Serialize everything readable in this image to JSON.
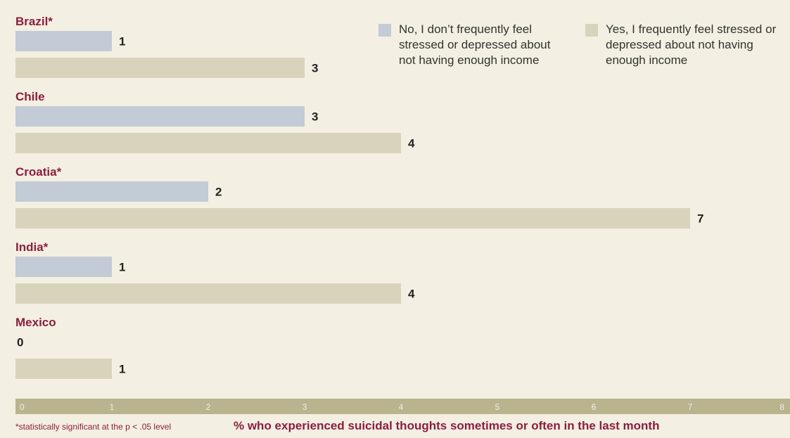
{
  "chart_data": {
    "type": "bar",
    "orientation": "horizontal",
    "categories": [
      "Brazil*",
      "Chile",
      "Croatia*",
      "India*",
      "Mexico"
    ],
    "series": [
      {
        "name": "No, I don’t frequently feel stressed or depressed about not having enough income",
        "color": "#c2cbd6",
        "values": [
          1,
          3,
          2,
          1,
          0
        ]
      },
      {
        "name": "Yes, I frequently feel stressed or depressed about not having enough income",
        "color": "#d8d3bb",
        "values": [
          3,
          4,
          7,
          4,
          1
        ]
      }
    ],
    "xlabel": "% who experienced suicidal thoughts sometimes or often in the last month",
    "xlim": [
      0,
      8
    ],
    "xticks": [
      "0",
      "1",
      "2",
      "3",
      "4",
      "5",
      "6",
      "7",
      "8"
    ],
    "legend_position": "top-right",
    "footnote": "*statistically significant at the p < .05 level",
    "axis_color": "#b9b38e"
  }
}
